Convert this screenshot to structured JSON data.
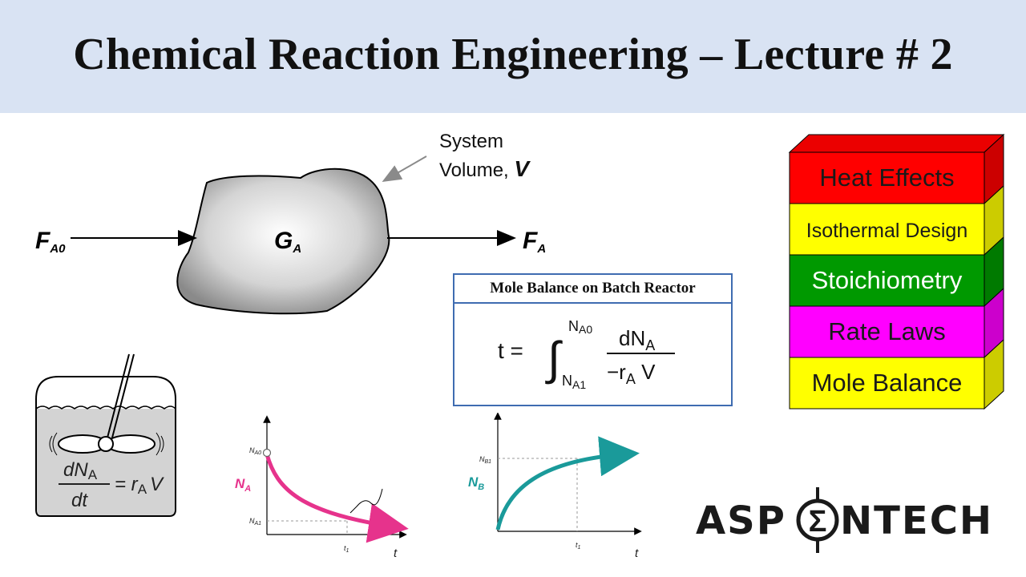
{
  "title": "Chemical Reaction Engineering – Lecture # 2",
  "system_diagram": {
    "inlet_label": "F",
    "inlet_sub": "A0",
    "outlet_label": "F",
    "outlet_sub": "A",
    "generation_label": "G",
    "generation_sub": "A",
    "system_line1": "System",
    "system_line2": "Volume, ",
    "system_symbol": "V"
  },
  "mole_balance_box": {
    "title": "Mole Balance on Batch Reactor",
    "equation": {
      "lhs": "t =",
      "upper_limit": "N",
      "upper_limit_sub": "A0",
      "lower_limit": "N",
      "lower_limit_sub": "A1",
      "numerator": "dN",
      "numerator_sub": "A",
      "denominator_a": "−r",
      "denominator_sub": "A",
      "denominator_b": " V"
    }
  },
  "stack": {
    "layers": [
      {
        "label": "Heat Effects",
        "color": "#ff0000"
      },
      {
        "label": "Isothermal Design",
        "color": "#ffff00"
      },
      {
        "label": "Stoichiometry",
        "color": "#009900"
      },
      {
        "label": "Rate Laws",
        "color": "#ff00ff"
      },
      {
        "label": "Mole Balance",
        "color": "#ffff00"
      }
    ]
  },
  "batch_reactor": {
    "numerator": "dN",
    "numerator_sub": "A",
    "denominator": "dt",
    "rhs_r": "= r",
    "rhs_sub": "A",
    "rhs_v": "V"
  },
  "chart_NA": {
    "ylabel": "N",
    "ylabel_sub": "A",
    "xlabel": "t",
    "y_tick_top": "N",
    "y_tick_top_sub": "A0",
    "y_tick_bottom": "N",
    "y_tick_bottom_sub": "A1",
    "x_tick": "t",
    "x_tick_sub": "1",
    "color": "#e6338c"
  },
  "chart_NB": {
    "ylabel": "N",
    "ylabel_sub": "B",
    "xlabel": "t",
    "y_tick": "N",
    "y_tick_sub": "B1",
    "x_tick": "t",
    "x_tick_sub": "1",
    "color": "#1a9a9a"
  },
  "logo": {
    "left_text": "ASP",
    "right_text": "NTECH",
    "symbol": "Σ"
  }
}
